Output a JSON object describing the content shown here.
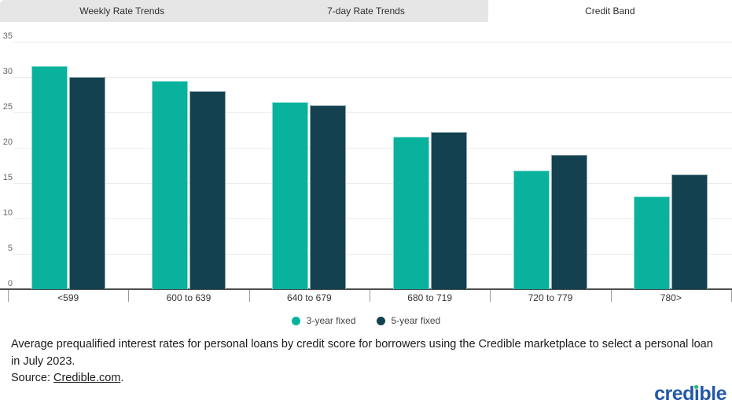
{
  "tabs": [
    {
      "label": "Weekly Rate Trends",
      "active": false
    },
    {
      "label": "7-day Rate Trends",
      "active": false
    },
    {
      "label": "Credit Band",
      "active": true
    }
  ],
  "chart_data": {
    "type": "bar",
    "categories": [
      "<599",
      "600 to 639",
      "640 to 679",
      "680 to 719",
      "720 to 779",
      "780>"
    ],
    "series": [
      {
        "name": "3-year fixed",
        "color": "#08b29d",
        "values": [
          31.6,
          29.4,
          26.5,
          21.6,
          16.8,
          13.1
        ]
      },
      {
        "name": "5-year fixed",
        "color": "#13414f",
        "values": [
          30.0,
          28.0,
          26.0,
          22.2,
          19.0,
          16.2
        ]
      }
    ],
    "title": "",
    "xlabel": "",
    "ylabel": "",
    "ylim": [
      0,
      35
    ],
    "yticks": [
      0,
      5,
      10,
      15,
      20,
      25,
      30,
      35
    ],
    "grid": true,
    "legend_position": "bottom"
  },
  "caption": {
    "line1": "Average prequalified interest rates for personal loans by credit score for borrowers using the Credible marketplace to select a personal loan in July 2023.",
    "source_prefix": "Source: ",
    "link_text": "Credible.com",
    "after_link": "."
  },
  "logo": {
    "part1": "cred",
    "part2": "i",
    "part3": "ble"
  },
  "colors": {
    "tab_bar_bg": "#e6e6e6",
    "active_tab_bg": "#ffffff",
    "gridline": "#ebebeb",
    "axis_line": "#4d4d4d",
    "logo_blue": "#2358a7",
    "logo_dot_green": "#2eb873"
  }
}
